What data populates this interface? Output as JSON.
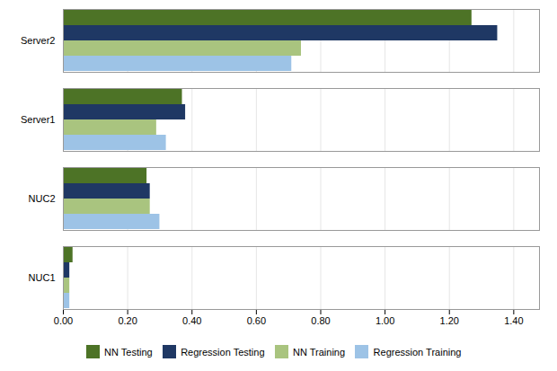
{
  "chart_data": {
    "type": "bar",
    "orientation": "horizontal",
    "categories": [
      "NUC1",
      "NUC2",
      "Server1",
      "Server2"
    ],
    "series": [
      {
        "name": "NN Testing",
        "color": "#4d7326",
        "values": [
          0.03,
          0.26,
          0.37,
          1.27
        ]
      },
      {
        "name": "Regression Testing",
        "color": "#1f3864",
        "values": [
          0.02,
          0.27,
          0.38,
          1.35
        ]
      },
      {
        "name": "NN Training",
        "color": "#a9c47f",
        "values": [
          0.02,
          0.27,
          0.29,
          0.74
        ]
      },
      {
        "name": "Regression Training",
        "color": "#9dc3e6",
        "values": [
          0.02,
          0.3,
          0.32,
          0.71
        ]
      }
    ],
    "xlim": [
      0,
      1.48
    ],
    "xticks": [
      {
        "value": 0.0,
        "label": "0.00"
      },
      {
        "value": 0.2,
        "label": "0.20"
      },
      {
        "value": 0.4,
        "label": "0.40"
      },
      {
        "value": 0.6,
        "label": "0.60"
      },
      {
        "value": 0.8,
        "label": "0.80"
      },
      {
        "value": 1.0,
        "label": "1.00"
      },
      {
        "value": 1.2,
        "label": "1.20"
      },
      {
        "value": 1.4,
        "label": "1.40"
      }
    ],
    "grid": true,
    "legend": "lower center"
  }
}
